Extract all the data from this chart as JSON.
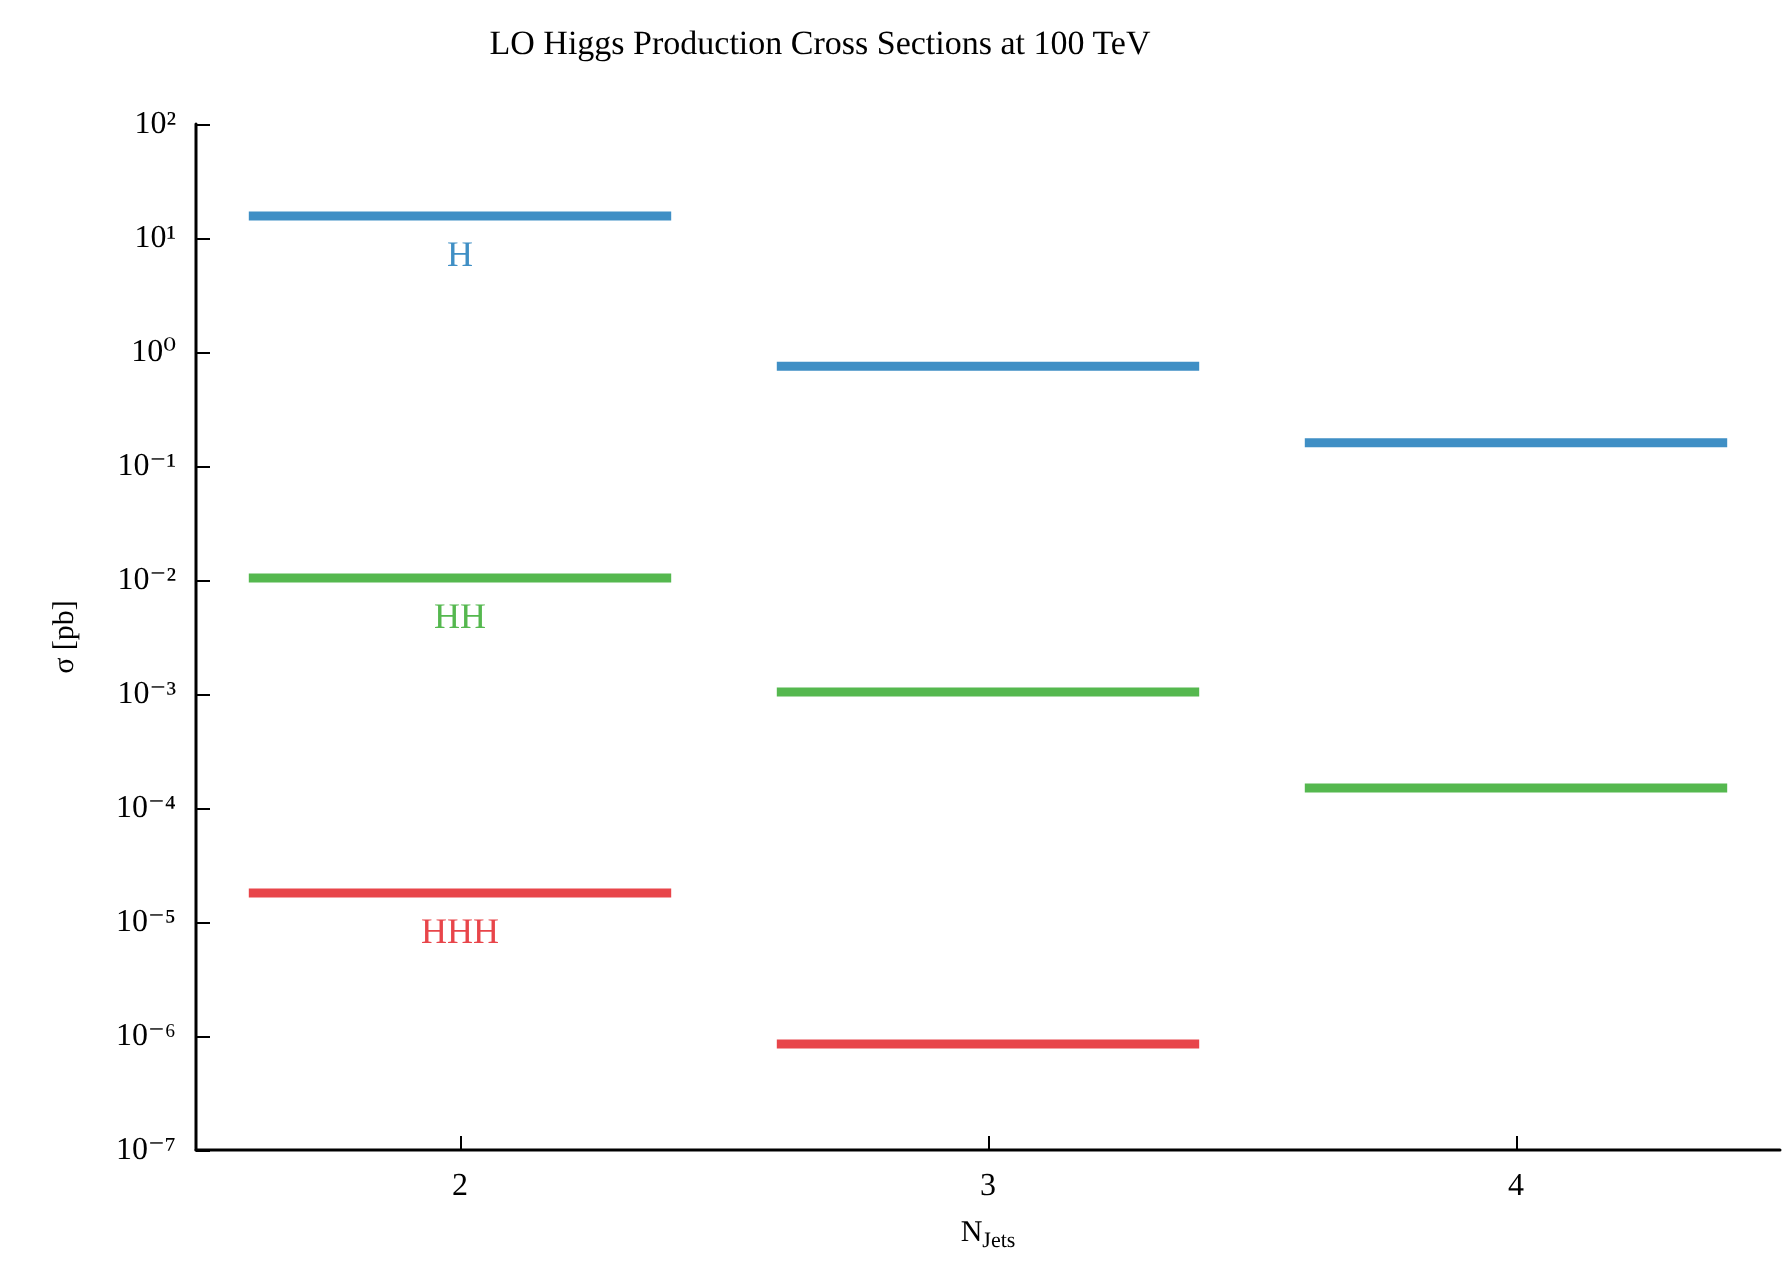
{
  "chart_data": {
    "type": "line",
    "title": "LO Higgs Production Cross Sections at 100 TeV",
    "xlabel": "N$_{Jets}$",
    "ylabel": "σ [pb]",
    "log": "y",
    "grid": false,
    "legend": false,
    "marker": "none",
    "line_style": "solid",
    "xlim": [
      1.5,
      4.5
    ],
    "xticks": [
      2,
      3,
      4
    ],
    "ylim": [
      1e-07,
      100
    ],
    "yticks": [
      {
        "value": 1e-07,
        "label": "10⁻⁷"
      },
      {
        "value": 1e-06,
        "label": "10⁻⁶"
      },
      {
        "value": 1e-05,
        "label": "10⁻⁵"
      },
      {
        "value": 0.0001,
        "label": "10⁻⁴"
      },
      {
        "value": 0.001,
        "label": "10⁻³"
      },
      {
        "value": 0.01,
        "label": "10⁻²"
      },
      {
        "value": 0.1,
        "label": "10⁻¹"
      },
      {
        "value": 1,
        "label": "10⁰"
      },
      {
        "value": 10,
        "label": "10¹"
      },
      {
        "value": 100,
        "label": "10²"
      }
    ],
    "series": [
      {
        "name": "H",
        "color": "#3f8fc5",
        "x": [
          1.6,
          2.4,
          2.5,
          2.6,
          3.4,
          3.5,
          3.6,
          4.4
        ],
        "values": [
          15.6,
          15.6,
          null,
          0.75,
          0.75,
          null,
          0.16,
          0.16
        ]
      },
      {
        "name": "HH",
        "color": "#55b84f",
        "x": [
          1.6,
          2.4,
          2.5,
          2.6,
          3.4,
          3.5,
          3.6,
          4.4
        ],
        "values": [
          0.0104,
          0.0104,
          null,
          0.00104,
          0.00104,
          null,
          0.00015,
          0.00015
        ]
      },
      {
        "name": "HHH",
        "color": "#e8454a",
        "x": [
          1.6,
          2.4,
          2.5,
          2.6,
          3.4
        ],
        "values": [
          1.8e-05,
          1.8e-05,
          null,
          8.5e-07,
          8.5e-07
        ]
      }
    ]
  }
}
